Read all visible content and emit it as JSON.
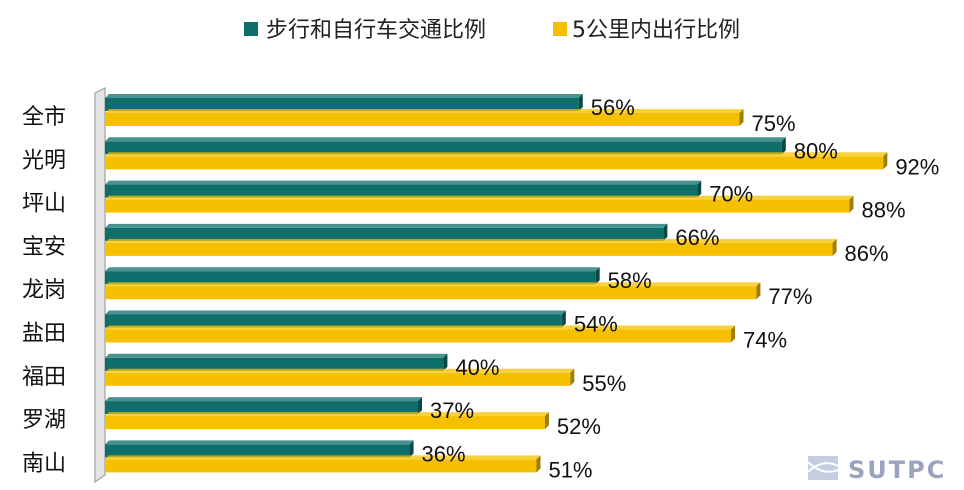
{
  "chart_data": {
    "type": "bar",
    "orientation": "horizontal",
    "categories": [
      "全市",
      "光明",
      "坪山",
      "宝安",
      "龙岗",
      "盐田",
      "福田",
      "罗湖",
      "南山"
    ],
    "series": [
      {
        "name": "步行和自行车交通比例",
        "color": "#0d6e6a",
        "values": [
          56,
          80,
          70,
          66,
          58,
          54,
          40,
          37,
          36
        ],
        "labels": [
          "56%",
          "80%",
          "70%",
          "66%",
          "58%",
          "54%",
          "40%",
          "37%",
          "36%"
        ]
      },
      {
        "name": "5公里内出行比例",
        "color": "#f5c000",
        "values": [
          75,
          92,
          88,
          86,
          77,
          74,
          55,
          52,
          51
        ],
        "labels": [
          "75%",
          "92%",
          "88%",
          "86%",
          "77%",
          "74%",
          "55%",
          "52%",
          "51%"
        ]
      }
    ],
    "xlim": [
      0,
      100
    ],
    "grid": false,
    "legend_position": "top"
  },
  "logo": {
    "name": "sutpc-logo-icon",
    "text": "SUTPC"
  }
}
